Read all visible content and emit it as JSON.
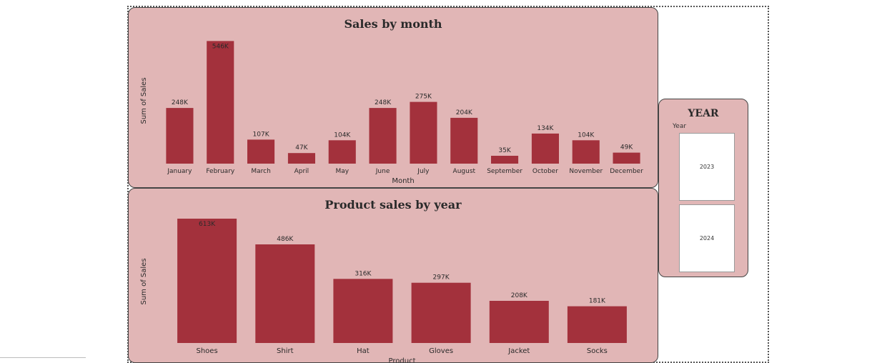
{
  "chart_data": [
    {
      "type": "bar",
      "title": "Sales by month",
      "xlabel": "Month",
      "ylabel": "Sum of Sales",
      "ylim": [
        0,
        560
      ],
      "unit_suffix": "K",
      "bar_color": "#a3313c",
      "categories": [
        "January",
        "February",
        "March",
        "April",
        "May",
        "June",
        "July",
        "August",
        "September",
        "October",
        "November",
        "December"
      ],
      "values": [
        248,
        546,
        107,
        47,
        104,
        248,
        275,
        204,
        35,
        134,
        104,
        49
      ],
      "data_labels": [
        "248K",
        "546K",
        "107K",
        "47K",
        "104K",
        "248K",
        "275K",
        "204K",
        "35K",
        "134K",
        "104K",
        "49K"
      ]
    },
    {
      "type": "bar",
      "title": "Product sales by year",
      "xlabel": "Product",
      "ylabel": "Sum of Sales",
      "ylim": [
        0,
        613
      ],
      "unit_suffix": "K",
      "bar_color": "#a3313c",
      "categories": [
        "Shoes",
        "Shirt",
        "Hat",
        "Gloves",
        "Jacket",
        "Socks"
      ],
      "values": [
        613,
        486,
        316,
        297,
        208,
        181
      ],
      "data_labels": [
        "613K",
        "486K",
        "316K",
        "297K",
        "208K",
        "181K"
      ]
    }
  ],
  "slicer": {
    "title": "YEAR",
    "field_label": "Year",
    "options": [
      "2023",
      "2024"
    ]
  },
  "colors": {
    "card_bg": "#e1b6b6",
    "bar": "#a3313c"
  }
}
